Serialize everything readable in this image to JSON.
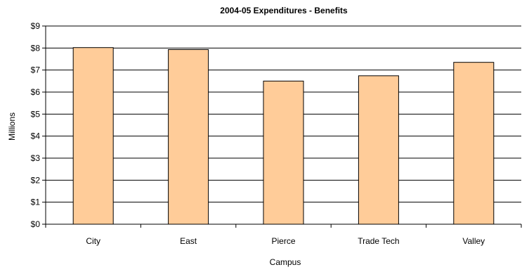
{
  "chart_data": {
    "type": "bar",
    "title": "2004-05 Expenditures - Benefits",
    "xlabel": "Campus",
    "ylabel": "Millions",
    "categories": [
      "City",
      "East",
      "Pierce",
      "Trade Tech",
      "Valley"
    ],
    "series": [
      {
        "values": [
          8.02,
          7.93,
          6.5,
          6.74,
          7.35
        ]
      }
    ],
    "ylim": [
      0,
      9
    ],
    "yticks": [
      0,
      1,
      2,
      3,
      4,
      5,
      6,
      7,
      8,
      9
    ],
    "ytick_labels": [
      "$0",
      "$1",
      "$2",
      "$3",
      "$4",
      "$5",
      "$6",
      "$7",
      "$8",
      "$9"
    ],
    "grid": true,
    "legend": "none",
    "colors": {
      "bar_fill": "#FFCC99",
      "bar_stroke": "#000000",
      "gridline": "#000000",
      "axis": "#000000"
    }
  }
}
